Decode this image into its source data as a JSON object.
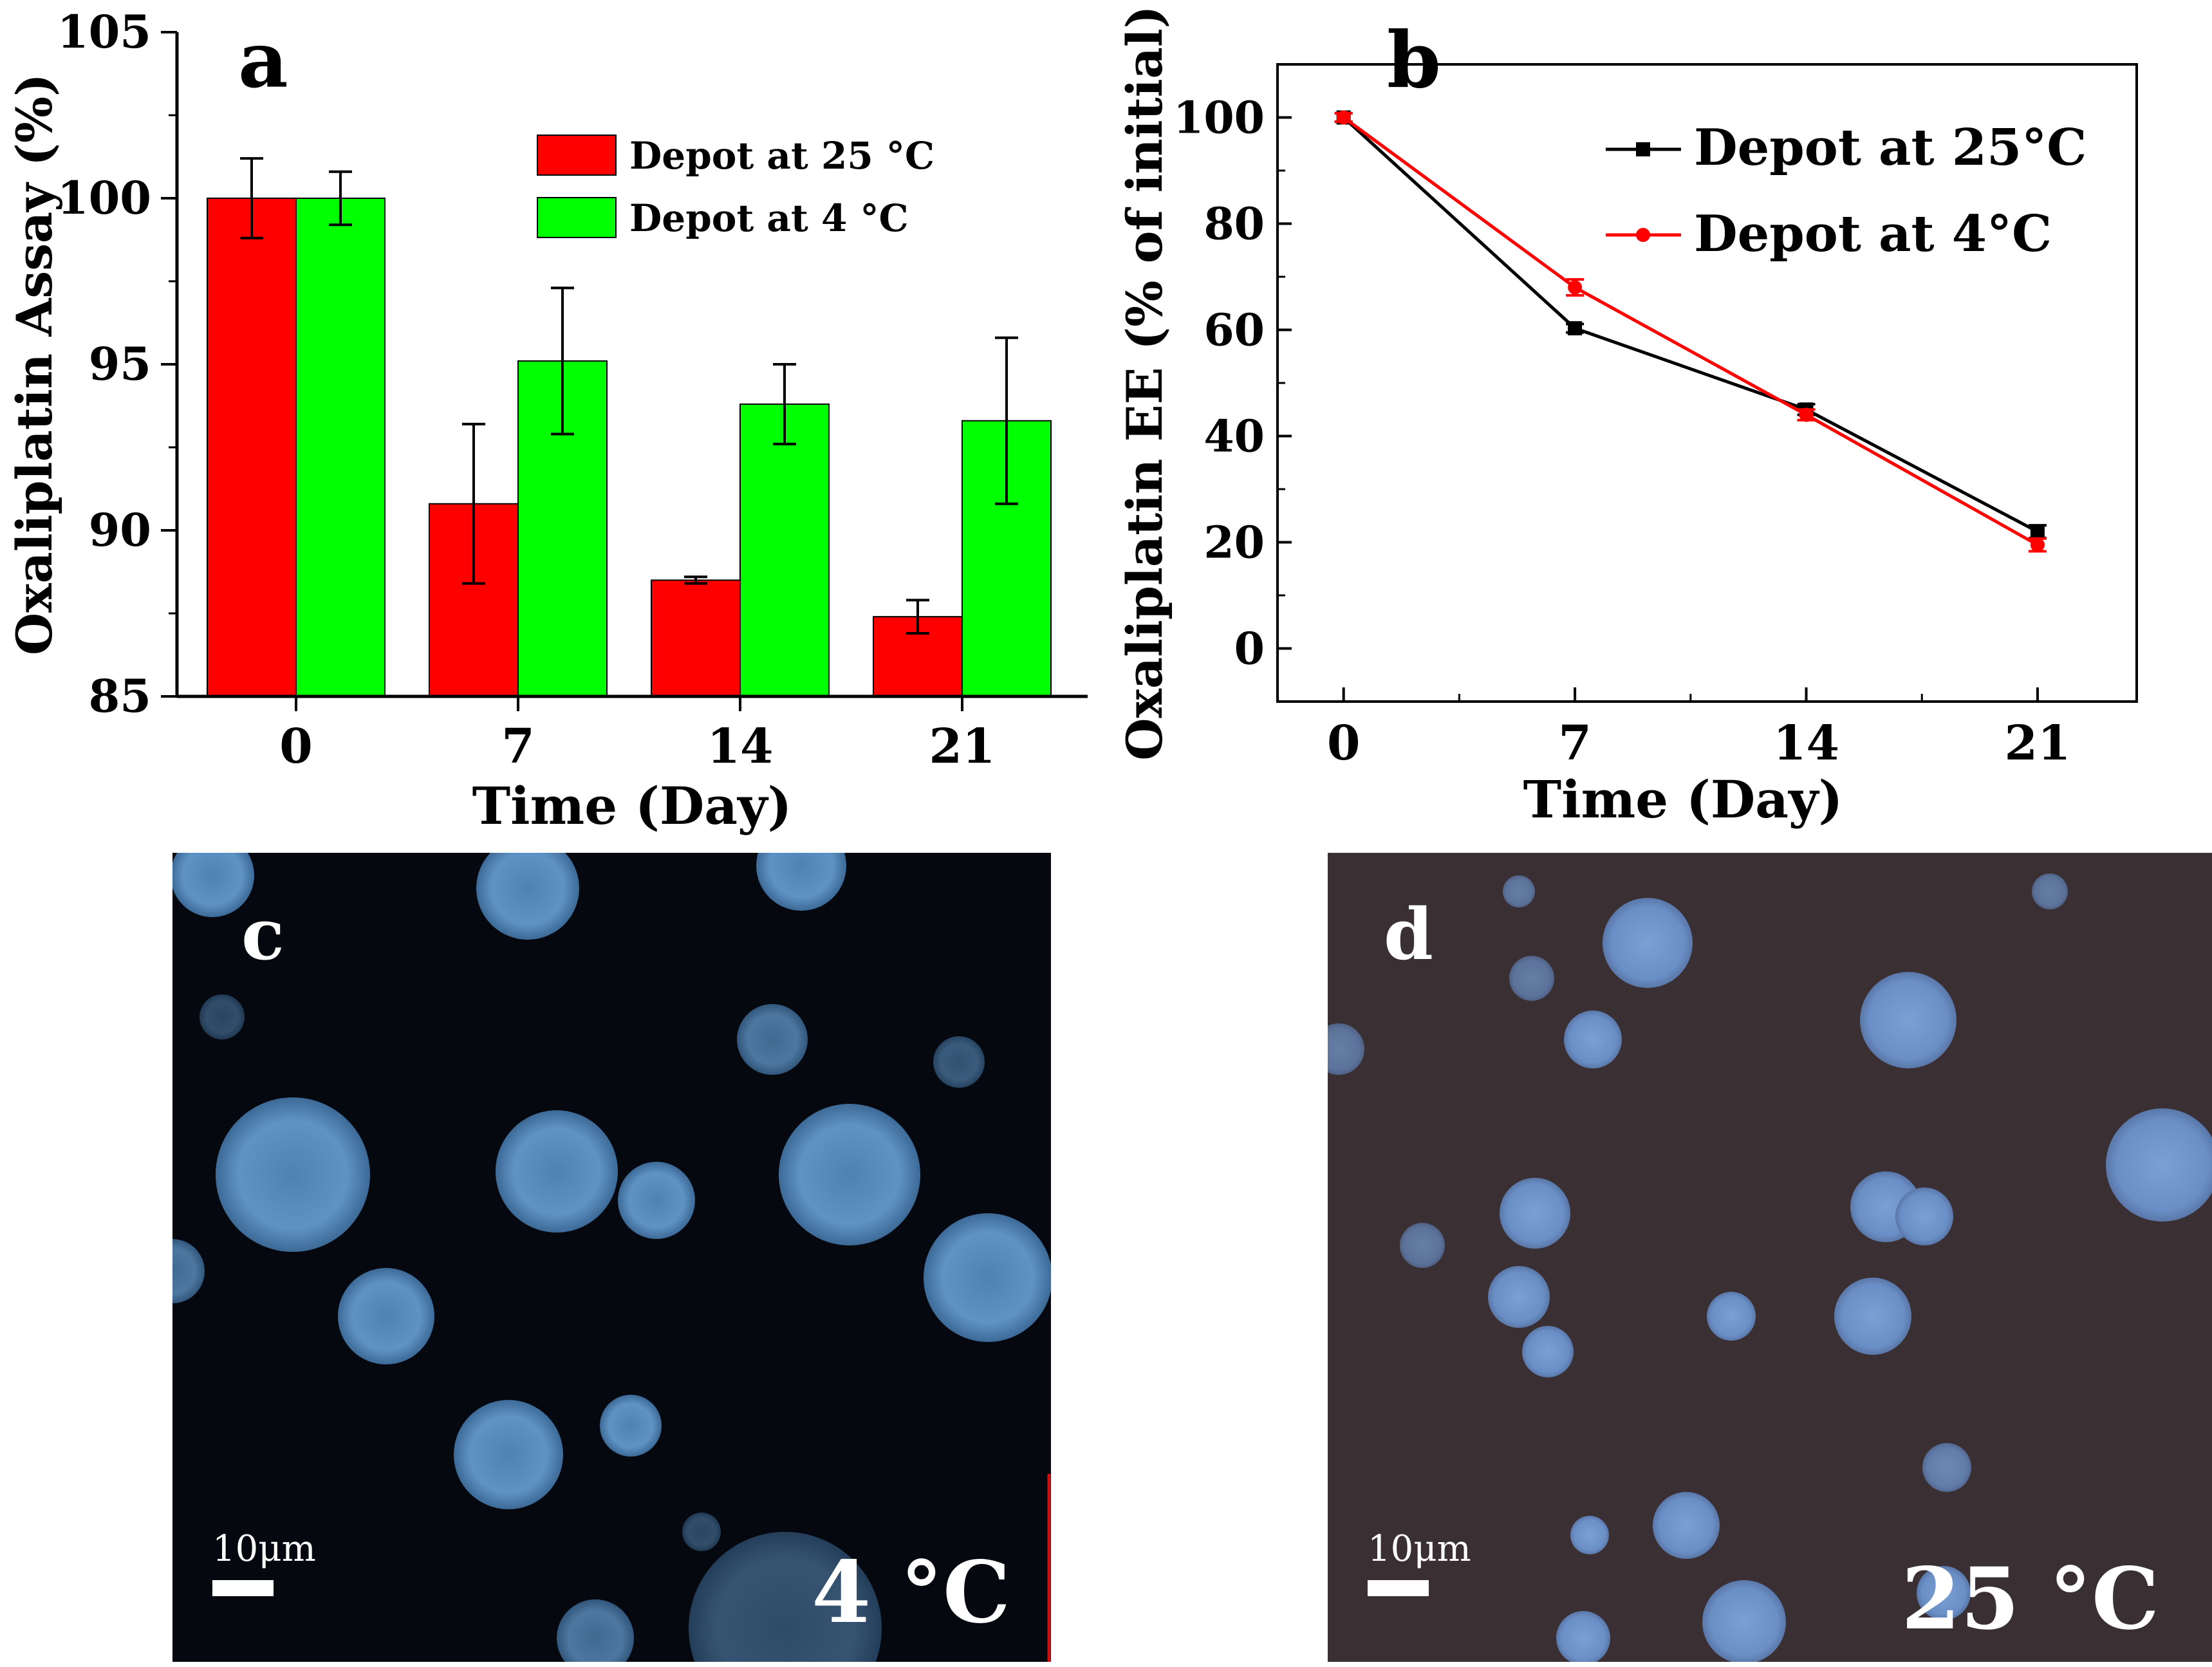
{
  "chart_data": [
    {
      "panel": "a",
      "type": "bar",
      "ylabel": "Oxaliplatin Assay (%)",
      "xlabel": "Time (Day)",
      "ylim": [
        85,
        105
      ],
      "yticks": [
        85,
        90,
        95,
        100,
        105
      ],
      "categories": [
        "0",
        "7",
        "14",
        "21"
      ],
      "series": [
        {
          "name": "Depot at 25 °C",
          "color": "#ff0000",
          "values": [
            100.0,
            90.8,
            88.5,
            87.4
          ],
          "errors": [
            1.2,
            2.4,
            0.1,
            0.5
          ]
        },
        {
          "name": "Depot at 4 °C",
          "color": "#00ff00",
          "values": [
            100.0,
            95.1,
            93.8,
            93.3
          ],
          "errors": [
            0.8,
            2.2,
            1.2,
            2.5
          ]
        }
      ],
      "legend": "top-right"
    },
    {
      "panel": "b",
      "type": "line",
      "ylabel": "Oxaliplatin EE (% of initial)",
      "xlabel": "Time (Day)",
      "ylim": [
        -10,
        110
      ],
      "xlim": [
        -2,
        24
      ],
      "yticks": [
        0,
        20,
        40,
        60,
        80,
        100
      ],
      "xticks": [
        0,
        7,
        14,
        21
      ],
      "x": [
        0,
        7,
        14,
        21
      ],
      "series": [
        {
          "name": "Depot at 25°C",
          "color": "#000000",
          "marker": "square",
          "values": [
            100,
            60.3,
            45.0,
            22.0
          ],
          "errors": [
            0.8,
            0.8,
            1.0,
            1.2
          ]
        },
        {
          "name": "Depot at 4°C",
          "color": "#ff0000",
          "marker": "circle",
          "values": [
            100,
            68.0,
            44.0,
            19.5
          ],
          "errors": [
            0.8,
            1.5,
            1.0,
            1.2
          ]
        }
      ],
      "legend": "top-right"
    }
  ],
  "micrographs": [
    {
      "panel": "c",
      "temperature_label": "4 °C",
      "scale_label": "10μm",
      "background": "#05080f",
      "particle_color": "#5b8fbe"
    },
    {
      "panel": "d",
      "temperature_label": "25 °C",
      "scale_label": "10μm",
      "background": "#3a2f33",
      "particle_color": "#6c92c7"
    }
  ]
}
